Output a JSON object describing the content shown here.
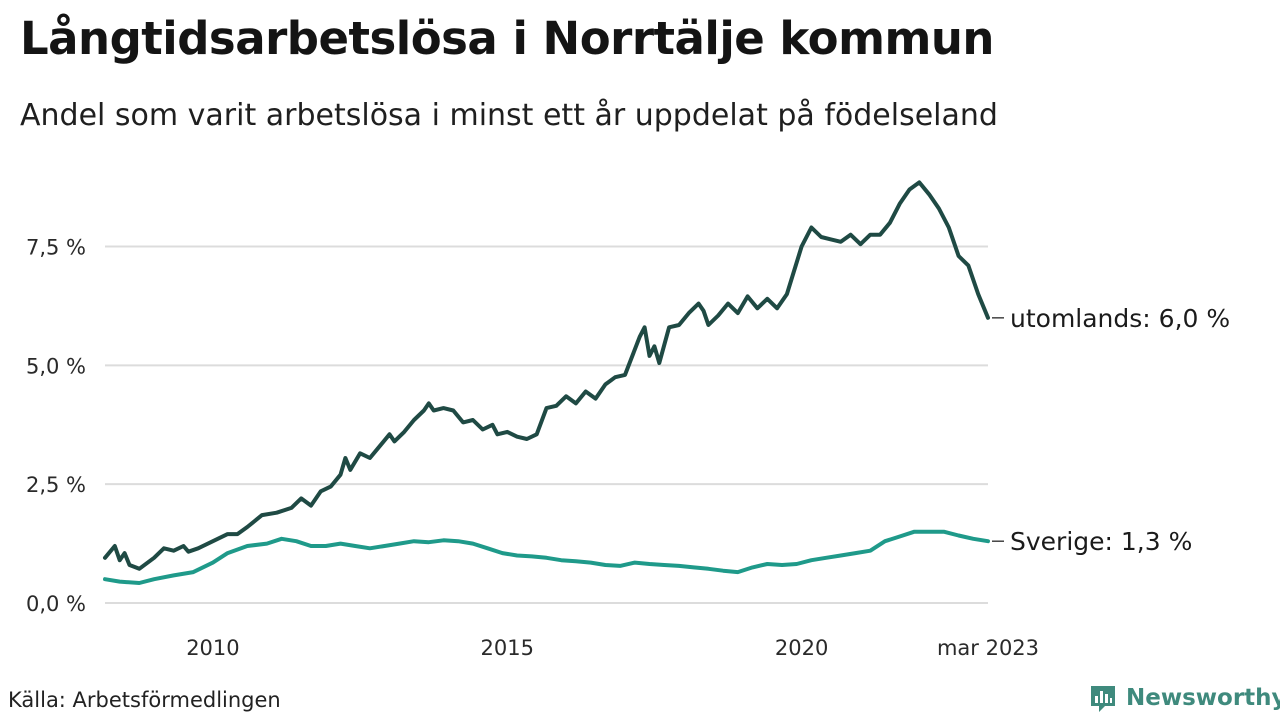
{
  "title": "Långtidsarbetslösa i Norrtälje kommun",
  "subtitle": "Andel som varit arbetslösa i minst ett år uppdelat på födelseland",
  "source": "Källa: Arbetsförmedlingen",
  "brand": {
    "name": "Newsworthy",
    "icon": "newsworthy-logo-icon",
    "color": "#3f8a7d"
  },
  "chart_data": {
    "type": "line",
    "title": "Långtidsarbetslösa i Norrtälje kommun",
    "subtitle": "Andel som varit arbetslösa i minst ett år uppdelat på födelseland",
    "xlabel": "",
    "ylabel": "",
    "ylim": [
      0,
      8.9
    ],
    "yticks": [
      0,
      2.5,
      5.0,
      7.5
    ],
    "ytick_labels": [
      "0,0 %",
      "2,5 %",
      "5,0 %",
      "7,5 %"
    ],
    "xlim": [
      "2008-03",
      "2023-03"
    ],
    "xticks": [
      "2010-01",
      "2015-01",
      "2020-01",
      "2023-03"
    ],
    "xtick_labels": [
      "2010",
      "2015",
      "2020",
      "mar 2023"
    ],
    "grid": "horizontal",
    "legend": "end-of-line labels",
    "series": [
      {
        "name": "utomlands",
        "end_label": "utomlands: 6,0 %",
        "color": "#1f4a44",
        "points": [
          [
            "2008-03",
            0.95
          ],
          [
            "2008-05",
            1.2
          ],
          [
            "2008-06",
            0.9
          ],
          [
            "2008-07",
            1.05
          ],
          [
            "2008-08",
            0.8
          ],
          [
            "2008-10",
            0.72
          ],
          [
            "2009-01",
            0.95
          ],
          [
            "2009-03",
            1.15
          ],
          [
            "2009-05",
            1.1
          ],
          [
            "2009-07",
            1.2
          ],
          [
            "2009-08",
            1.08
          ],
          [
            "2009-10",
            1.15
          ],
          [
            "2010-01",
            1.3
          ],
          [
            "2010-04",
            1.45
          ],
          [
            "2010-06",
            1.45
          ],
          [
            "2010-08",
            1.6
          ],
          [
            "2010-11",
            1.85
          ],
          [
            "2011-02",
            1.9
          ],
          [
            "2011-05",
            2.0
          ],
          [
            "2011-07",
            2.2
          ],
          [
            "2011-09",
            2.05
          ],
          [
            "2011-11",
            2.35
          ],
          [
            "2012-01",
            2.45
          ],
          [
            "2012-03",
            2.7
          ],
          [
            "2012-04",
            3.05
          ],
          [
            "2012-05",
            2.8
          ],
          [
            "2012-07",
            3.15
          ],
          [
            "2012-09",
            3.05
          ],
          [
            "2012-11",
            3.3
          ],
          [
            "2013-01",
            3.55
          ],
          [
            "2013-02",
            3.4
          ],
          [
            "2013-04",
            3.6
          ],
          [
            "2013-06",
            3.85
          ],
          [
            "2013-08",
            4.05
          ],
          [
            "2013-09",
            4.2
          ],
          [
            "2013-10",
            4.05
          ],
          [
            "2013-12",
            4.1
          ],
          [
            "2014-02",
            4.05
          ],
          [
            "2014-04",
            3.8
          ],
          [
            "2014-06",
            3.85
          ],
          [
            "2014-08",
            3.65
          ],
          [
            "2014-10",
            3.75
          ],
          [
            "2014-11",
            3.55
          ],
          [
            "2015-01",
            3.6
          ],
          [
            "2015-03",
            3.5
          ],
          [
            "2015-05",
            3.45
          ],
          [
            "2015-07",
            3.55
          ],
          [
            "2015-09",
            4.1
          ],
          [
            "2015-11",
            4.15
          ],
          [
            "2016-01",
            4.35
          ],
          [
            "2016-03",
            4.2
          ],
          [
            "2016-05",
            4.45
          ],
          [
            "2016-07",
            4.3
          ],
          [
            "2016-09",
            4.6
          ],
          [
            "2016-11",
            4.75
          ],
          [
            "2017-01",
            4.8
          ],
          [
            "2017-04",
            5.6
          ],
          [
            "2017-05",
            5.8
          ],
          [
            "2017-06",
            5.2
          ],
          [
            "2017-07",
            5.4
          ],
          [
            "2017-08",
            5.05
          ],
          [
            "2017-10",
            5.8
          ],
          [
            "2017-12",
            5.85
          ],
          [
            "2018-02",
            6.1
          ],
          [
            "2018-04",
            6.3
          ],
          [
            "2018-05",
            6.15
          ],
          [
            "2018-06",
            5.85
          ],
          [
            "2018-08",
            6.05
          ],
          [
            "2018-10",
            6.3
          ],
          [
            "2018-12",
            6.1
          ],
          [
            "2019-02",
            6.45
          ],
          [
            "2019-04",
            6.2
          ],
          [
            "2019-06",
            6.4
          ],
          [
            "2019-08",
            6.2
          ],
          [
            "2019-10",
            6.5
          ],
          [
            "2020-01",
            7.5
          ],
          [
            "2020-03",
            7.9
          ],
          [
            "2020-05",
            7.7
          ],
          [
            "2020-07",
            7.65
          ],
          [
            "2020-09",
            7.6
          ],
          [
            "2020-11",
            7.75
          ],
          [
            "2021-01",
            7.55
          ],
          [
            "2021-03",
            7.75
          ],
          [
            "2021-05",
            7.75
          ],
          [
            "2021-07",
            8.0
          ],
          [
            "2021-09",
            8.4
          ],
          [
            "2021-11",
            8.7
          ],
          [
            "2022-01",
            8.85
          ],
          [
            "2022-03",
            8.6
          ],
          [
            "2022-05",
            8.3
          ],
          [
            "2022-07",
            7.9
          ],
          [
            "2022-09",
            7.3
          ],
          [
            "2022-11",
            7.1
          ],
          [
            "2023-01",
            6.5
          ],
          [
            "2023-03",
            6.0
          ]
        ]
      },
      {
        "name": "Sverige",
        "end_label": "Sverige: 1,3 %",
        "color": "#1f9a8a",
        "points": [
          [
            "2008-03",
            0.5
          ],
          [
            "2008-06",
            0.45
          ],
          [
            "2008-10",
            0.42
          ],
          [
            "2009-01",
            0.5
          ],
          [
            "2009-05",
            0.58
          ],
          [
            "2009-09",
            0.65
          ],
          [
            "2010-01",
            0.85
          ],
          [
            "2010-04",
            1.05
          ],
          [
            "2010-08",
            1.2
          ],
          [
            "2010-12",
            1.25
          ],
          [
            "2011-03",
            1.35
          ],
          [
            "2011-06",
            1.3
          ],
          [
            "2011-09",
            1.2
          ],
          [
            "2011-12",
            1.2
          ],
          [
            "2012-03",
            1.25
          ],
          [
            "2012-06",
            1.2
          ],
          [
            "2012-09",
            1.15
          ],
          [
            "2012-12",
            1.2
          ],
          [
            "2013-03",
            1.25
          ],
          [
            "2013-06",
            1.3
          ],
          [
            "2013-09",
            1.28
          ],
          [
            "2013-12",
            1.32
          ],
          [
            "2014-03",
            1.3
          ],
          [
            "2014-06",
            1.25
          ],
          [
            "2014-09",
            1.15
          ],
          [
            "2014-12",
            1.05
          ],
          [
            "2015-03",
            1.0
          ],
          [
            "2015-06",
            0.98
          ],
          [
            "2015-09",
            0.95
          ],
          [
            "2015-12",
            0.9
          ],
          [
            "2016-03",
            0.88
          ],
          [
            "2016-06",
            0.85
          ],
          [
            "2016-09",
            0.8
          ],
          [
            "2016-12",
            0.78
          ],
          [
            "2017-03",
            0.85
          ],
          [
            "2017-06",
            0.82
          ],
          [
            "2017-09",
            0.8
          ],
          [
            "2017-12",
            0.78
          ],
          [
            "2018-03",
            0.75
          ],
          [
            "2018-06",
            0.72
          ],
          [
            "2018-09",
            0.68
          ],
          [
            "2018-12",
            0.65
          ],
          [
            "2019-03",
            0.75
          ],
          [
            "2019-06",
            0.82
          ],
          [
            "2019-09",
            0.8
          ],
          [
            "2019-12",
            0.82
          ],
          [
            "2020-03",
            0.9
          ],
          [
            "2020-06",
            0.95
          ],
          [
            "2020-09",
            1.0
          ],
          [
            "2020-12",
            1.05
          ],
          [
            "2021-03",
            1.1
          ],
          [
            "2021-06",
            1.3
          ],
          [
            "2021-09",
            1.4
          ],
          [
            "2021-12",
            1.5
          ],
          [
            "2022-03",
            1.5
          ],
          [
            "2022-06",
            1.5
          ],
          [
            "2022-09",
            1.42
          ],
          [
            "2022-12",
            1.35
          ],
          [
            "2023-03",
            1.3
          ]
        ]
      }
    ]
  }
}
